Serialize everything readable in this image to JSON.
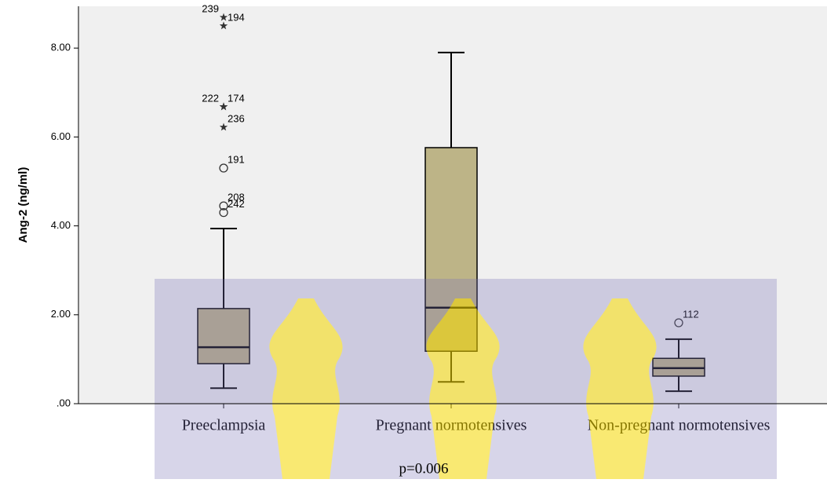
{
  "chart_data": {
    "type": "boxplot",
    "y_label": "Ang-2 (ng/ml)",
    "annotation": "p=0.006",
    "categories": [
      "Preeclampsia",
      "Pregnant normotensives",
      "Non-pregnant normotensives"
    ],
    "color": "#bdb487",
    "background": "#f0f0f0",
    "ylim": [
      0,
      8.94
    ],
    "yticks": [
      {
        "value": 0,
        "label": ".00"
      },
      {
        "value": 2,
        "label": "2.00"
      },
      {
        "value": 4,
        "label": "4.00"
      },
      {
        "value": 6,
        "label": "6.00"
      },
      {
        "value": 8,
        "label": "8.00"
      }
    ],
    "boxes": [
      {
        "whisker_low": 0.35,
        "q1": 0.9,
        "median": 1.27,
        "q3": 2.14,
        "whisker_high": 3.94,
        "outliers": [
          {
            "value": 4.3,
            "label": "242",
            "marker": "circle"
          },
          {
            "value": 4.45,
            "label": "208",
            "marker": "circle"
          },
          {
            "value": 5.3,
            "label": "191",
            "marker": "circle"
          },
          {
            "value": 6.22,
            "label": "236",
            "marker": "star"
          },
          {
            "value": 6.68,
            "label": "174",
            "marker": "star"
          },
          {
            "value": 6.68,
            "label": "222",
            "marker": "star"
          },
          {
            "value": 8.5,
            "label": "194",
            "marker": "star"
          },
          {
            "value": 8.69,
            "label": "239",
            "marker": "star"
          }
        ]
      },
      {
        "whisker_low": 0.49,
        "q1": 1.18,
        "median": 2.16,
        "q3": 5.76,
        "whisker_high": 7.9,
        "outliers": []
      },
      {
        "whisker_low": 0.28,
        "q1": 0.62,
        "median": 0.8,
        "q3": 1.02,
        "whisker_high": 1.45,
        "outliers": [
          {
            "value": 1.82,
            "label": "112",
            "marker": "circle"
          }
        ]
      }
    ]
  }
}
